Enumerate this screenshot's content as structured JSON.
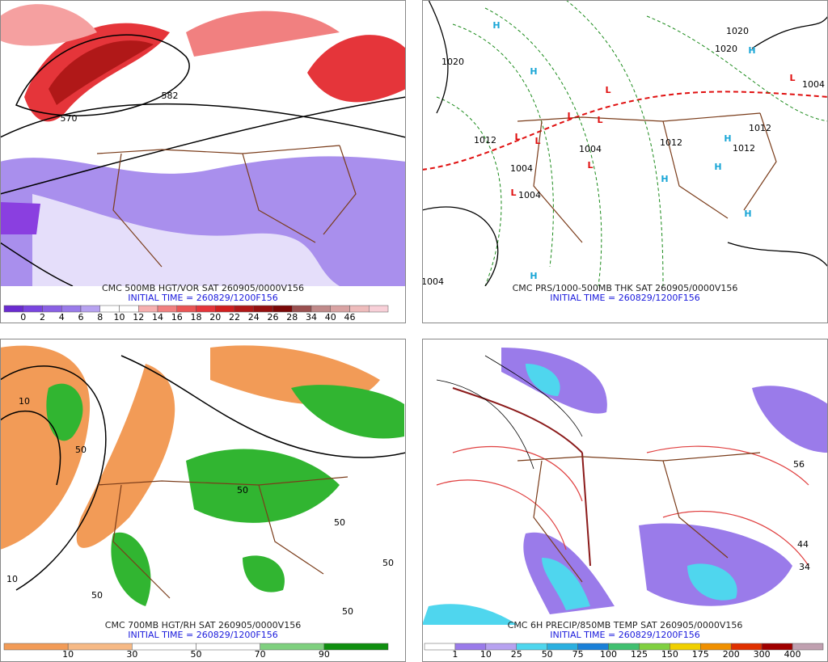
{
  "panels": [
    {
      "title": "CMC 500MB HGT/VOR SAT 260905/0000V156",
      "initial": "INITIAL TIME = 260829/1200F156",
      "scale": [
        "0",
        "2",
        "4",
        "6",
        "8",
        "10",
        "12",
        "14",
        "16",
        "18",
        "20",
        "22",
        "24",
        "26",
        "28",
        "34",
        "40",
        "46"
      ],
      "map_labels": [
        "570",
        "582"
      ]
    },
    {
      "title": "CMC PRS/1000-500MB THK SAT 260905/0000V156",
      "initial": "INITIAL TIME = 260829/1200F156",
      "scale": [],
      "map_labels": [
        "1020",
        "1012",
        "1004",
        "1004",
        "1004",
        "1012",
        "1020",
        "1020",
        "1012",
        "1004",
        "1004",
        "1012",
        "H",
        "H",
        "H",
        "H",
        "H",
        "H",
        "H",
        "H",
        "L",
        "L",
        "L",
        "L",
        "L",
        "L",
        "L",
        "L"
      ]
    },
    {
      "title": "CMC 700MB HGT/RH SAT 260905/0000V156",
      "initial": "INITIAL TIME = 260829/1200F156",
      "scale": [
        "10",
        "30",
        "50",
        "70",
        "90"
      ],
      "map_labels": [
        "10",
        "50",
        "50",
        "50",
        "50",
        "10",
        "50",
        "50"
      ]
    },
    {
      "title": "CMC 6H PRECIP/850MB TEMP SAT 260905/0000V156",
      "initial": "INITIAL TIME = 260829/1200F156",
      "scale": [
        "1",
        "10",
        "25",
        "50",
        "75",
        "100",
        "125",
        "150",
        "175",
        "200",
        "300",
        "400"
      ],
      "map_labels": [
        "44",
        "34",
        "56"
      ]
    }
  ]
}
